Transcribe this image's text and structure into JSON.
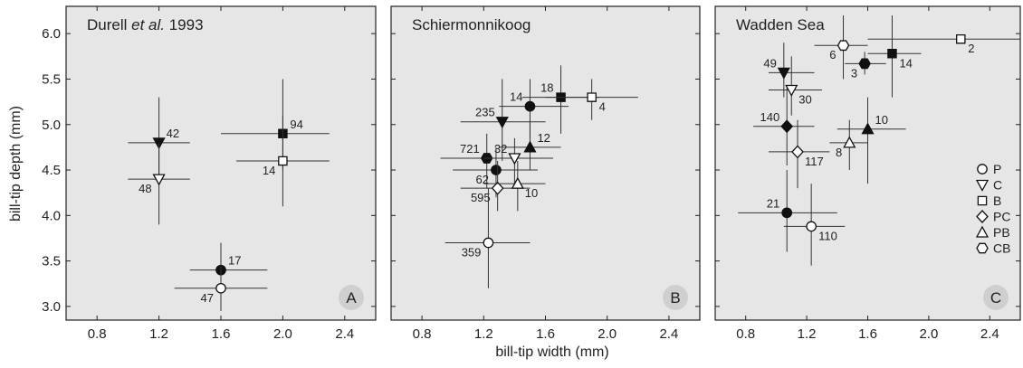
{
  "figure": {
    "ylabel": "bill-tip depth (mm)",
    "xlabel": "bill-tip width (mm)"
  },
  "legend": {
    "entries": [
      {
        "symbol": "circle",
        "label": "P"
      },
      {
        "symbol": "triangle-down",
        "label": "C"
      },
      {
        "symbol": "square",
        "label": "B"
      },
      {
        "symbol": "diamond",
        "label": "PC"
      },
      {
        "symbol": "triangle-up",
        "label": "PB"
      },
      {
        "symbol": "hexagon",
        "label": "CB"
      }
    ]
  },
  "colors": {
    "panel_bg": "#e6e6e6",
    "marker": "#111111",
    "badge": "#cfcfcf"
  },
  "chart_data": [
    {
      "type": "scatter",
      "title": "Durell et al. 1993",
      "title_parts": [
        "Durell ",
        "et al.",
        " 1993"
      ],
      "badge": "A",
      "xlim": [
        0.6,
        2.6
      ],
      "ylim": [
        2.85,
        6.3
      ],
      "xticks": [
        "0.8",
        "1.2",
        "1.6",
        "2.0",
        "2.4"
      ],
      "yticks": [
        "3.0",
        "3.5",
        "4.0",
        "4.5",
        "5.0",
        "5.5",
        "6.0"
      ],
      "points": [
        {
          "symbol": "triangle-down",
          "filled": true,
          "x": 1.2,
          "y": 4.8,
          "xerr": [
            1.0,
            1.4
          ],
          "yerr": [
            4.45,
            5.3
          ],
          "label": "42",
          "label_pos": "ne"
        },
        {
          "symbol": "triangle-down",
          "filled": false,
          "x": 1.2,
          "y": 4.4,
          "xerr": [
            1.0,
            1.4
          ],
          "yerr": [
            3.9,
            4.8
          ],
          "label": "48",
          "label_pos": "sw"
        },
        {
          "symbol": "square",
          "filled": true,
          "x": 2.0,
          "y": 4.9,
          "xerr": [
            1.6,
            2.3
          ],
          "yerr": [
            4.5,
            5.5
          ],
          "label": "94",
          "label_pos": "ne"
        },
        {
          "symbol": "square",
          "filled": false,
          "x": 2.0,
          "y": 4.6,
          "xerr": [
            1.7,
            2.3
          ],
          "yerr": [
            4.1,
            5.1
          ],
          "label": "14",
          "label_pos": "sw"
        },
        {
          "symbol": "circle",
          "filled": true,
          "x": 1.6,
          "y": 3.4,
          "xerr": [
            1.4,
            1.9
          ],
          "yerr": [
            3.1,
            3.7
          ],
          "label": "17",
          "label_pos": "ne"
        },
        {
          "symbol": "circle",
          "filled": false,
          "x": 1.6,
          "y": 3.2,
          "xerr": [
            1.3,
            1.9
          ],
          "yerr": [
            2.95,
            3.45
          ],
          "label": "47",
          "label_pos": "sw"
        }
      ]
    },
    {
      "type": "scatter",
      "title": "Schiermonnikoog",
      "title_parts": [
        "Schiermonnikoog"
      ],
      "badge": "B",
      "xlim": [
        0.6,
        2.6
      ],
      "ylim": [
        2.85,
        6.3
      ],
      "xticks": [
        "0.8",
        "1.2",
        "1.6",
        "2.0",
        "2.4"
      ],
      "yticks": [
        "3.0",
        "3.5",
        "4.0",
        "4.5",
        "5.0",
        "5.5",
        "6.0"
      ],
      "points": [
        {
          "symbol": "square",
          "filled": true,
          "x": 1.7,
          "y": 5.3,
          "xerr": [
            1.45,
            1.95
          ],
          "yerr": [
            4.9,
            5.65
          ],
          "label": "18",
          "label_pos": "nw"
        },
        {
          "symbol": "square",
          "filled": false,
          "x": 1.9,
          "y": 5.3,
          "xerr": [
            1.6,
            2.2
          ],
          "yerr": [
            5.05,
            5.5
          ],
          "label": "4",
          "label_pos": "se"
        },
        {
          "symbol": "circle",
          "filled": true,
          "x": 1.5,
          "y": 5.2,
          "xerr": [
            1.3,
            1.75
          ],
          "yerr": [
            4.85,
            5.5
          ],
          "label": "14",
          "label_pos": "nw"
        },
        {
          "symbol": "triangle-down",
          "filled": true,
          "x": 1.32,
          "y": 5.03,
          "xerr": [
            1.05,
            1.6
          ],
          "yerr": [
            4.6,
            5.5
          ],
          "label": "235",
          "label_pos": "nw"
        },
        {
          "symbol": "hexagon",
          "filled": true,
          "x": 1.22,
          "y": 4.63,
          "xerr": [
            0.92,
            1.55
          ],
          "yerr": [
            4.3,
            4.9
          ],
          "label": "721",
          "label_pos": "nw"
        },
        {
          "symbol": "triangle-down",
          "filled": false,
          "x": 1.4,
          "y": 4.63,
          "xerr": [
            1.2,
            1.65
          ],
          "yerr": [
            4.35,
            4.85
          ],
          "label": "32",
          "label_pos": "nw"
        },
        {
          "symbol": "triangle-up",
          "filled": true,
          "x": 1.5,
          "y": 4.75,
          "xerr": [
            1.3,
            1.7
          ],
          "yerr": [
            4.5,
            5.05
          ],
          "label": "12",
          "label_pos": "ne"
        },
        {
          "symbol": "circle",
          "filled": true,
          "x": 1.28,
          "y": 4.5,
          "xerr": [
            1.0,
            1.55
          ],
          "yerr": [
            4.2,
            4.75
          ],
          "label": "62",
          "label_pos": "sw"
        },
        {
          "symbol": "diamond",
          "filled": false,
          "x": 1.29,
          "y": 4.3,
          "xerr": [
            1.05,
            1.5
          ],
          "yerr": [
            4.05,
            4.6
          ],
          "label": "595",
          "label_pos": "sw"
        },
        {
          "symbol": "triangle-up",
          "filled": false,
          "x": 1.42,
          "y": 4.35,
          "xerr": [
            1.2,
            1.6
          ],
          "yerr": [
            4.05,
            4.6
          ],
          "label": "10",
          "label_pos": "se"
        },
        {
          "symbol": "circle",
          "filled": false,
          "x": 1.23,
          "y": 3.7,
          "xerr": [
            0.95,
            1.5
          ],
          "yerr": [
            3.2,
            4.3
          ],
          "label": "359",
          "label_pos": "sw"
        }
      ]
    },
    {
      "type": "scatter",
      "title": "Wadden Sea",
      "title_parts": [
        "Wadden Sea"
      ],
      "badge": "C",
      "xlim": [
        0.6,
        2.6
      ],
      "ylim": [
        2.85,
        6.3
      ],
      "xticks": [
        "0.8",
        "1.2",
        "1.6",
        "2.0",
        "2.4"
      ],
      "yticks": [
        "3.0",
        "3.5",
        "4.0",
        "4.5",
        "5.0",
        "5.5",
        "6.0"
      ],
      "points": [
        {
          "symbol": "hexagon",
          "filled": false,
          "x": 1.44,
          "y": 5.87,
          "xerr": [
            1.25,
            1.6
          ],
          "yerr": [
            5.5,
            6.2
          ],
          "label": "6",
          "label_pos": "sw"
        },
        {
          "symbol": "square",
          "filled": false,
          "x": 2.21,
          "y": 5.94,
          "xerr": [
            1.6,
            2.6
          ],
          "yerr": [
            5.94,
            5.94
          ],
          "label": "2",
          "label_pos": "se"
        },
        {
          "symbol": "hexagon",
          "filled": true,
          "x": 1.58,
          "y": 5.67,
          "xerr": [
            1.45,
            1.72
          ],
          "yerr": [
            5.55,
            5.8
          ],
          "label": "3",
          "label_pos": "sw"
        },
        {
          "symbol": "square",
          "filled": true,
          "x": 1.76,
          "y": 5.78,
          "xerr": [
            1.6,
            1.95
          ],
          "yerr": [
            5.3,
            6.2
          ],
          "label": "14",
          "label_pos": "se"
        },
        {
          "symbol": "triangle-down",
          "filled": true,
          "x": 1.05,
          "y": 5.57,
          "xerr": [
            0.95,
            1.25
          ],
          "yerr": [
            5.3,
            5.9
          ],
          "label": "49",
          "label_pos": "nw"
        },
        {
          "symbol": "triangle-down",
          "filled": false,
          "x": 1.1,
          "y": 5.38,
          "xerr": [
            0.95,
            1.3
          ],
          "yerr": [
            5.1,
            5.75
          ],
          "label": "30",
          "label_pos": "se"
        },
        {
          "symbol": "diamond",
          "filled": true,
          "x": 1.07,
          "y": 4.98,
          "xerr": [
            0.85,
            1.25
          ],
          "yerr": [
            4.55,
            5.4
          ],
          "label": "140",
          "label_pos": "nw"
        },
        {
          "symbol": "triangle-up",
          "filled": true,
          "x": 1.6,
          "y": 4.95,
          "xerr": [
            1.4,
            1.85
          ],
          "yerr": [
            4.35,
            5.3
          ],
          "label": "10",
          "label_pos": "ne"
        },
        {
          "symbol": "triangle-up",
          "filled": false,
          "x": 1.48,
          "y": 4.8,
          "xerr": [
            1.35,
            1.6
          ],
          "yerr": [
            4.5,
            5.05
          ],
          "label": "8",
          "label_pos": "sw"
        },
        {
          "symbol": "diamond",
          "filled": false,
          "x": 1.14,
          "y": 4.7,
          "xerr": [
            0.95,
            1.35
          ],
          "yerr": [
            4.3,
            5.05
          ],
          "label": "117",
          "label_pos": "se"
        },
        {
          "symbol": "circle",
          "filled": true,
          "x": 1.07,
          "y": 4.03,
          "xerr": [
            0.75,
            1.4
          ],
          "yerr": [
            3.6,
            4.5
          ],
          "label": "21",
          "label_pos": "nw"
        },
        {
          "symbol": "circle",
          "filled": false,
          "x": 1.23,
          "y": 3.88,
          "xerr": [
            1.05,
            1.45
          ],
          "yerr": [
            3.45,
            4.35
          ],
          "label": "110",
          "label_pos": "se"
        }
      ]
    }
  ]
}
